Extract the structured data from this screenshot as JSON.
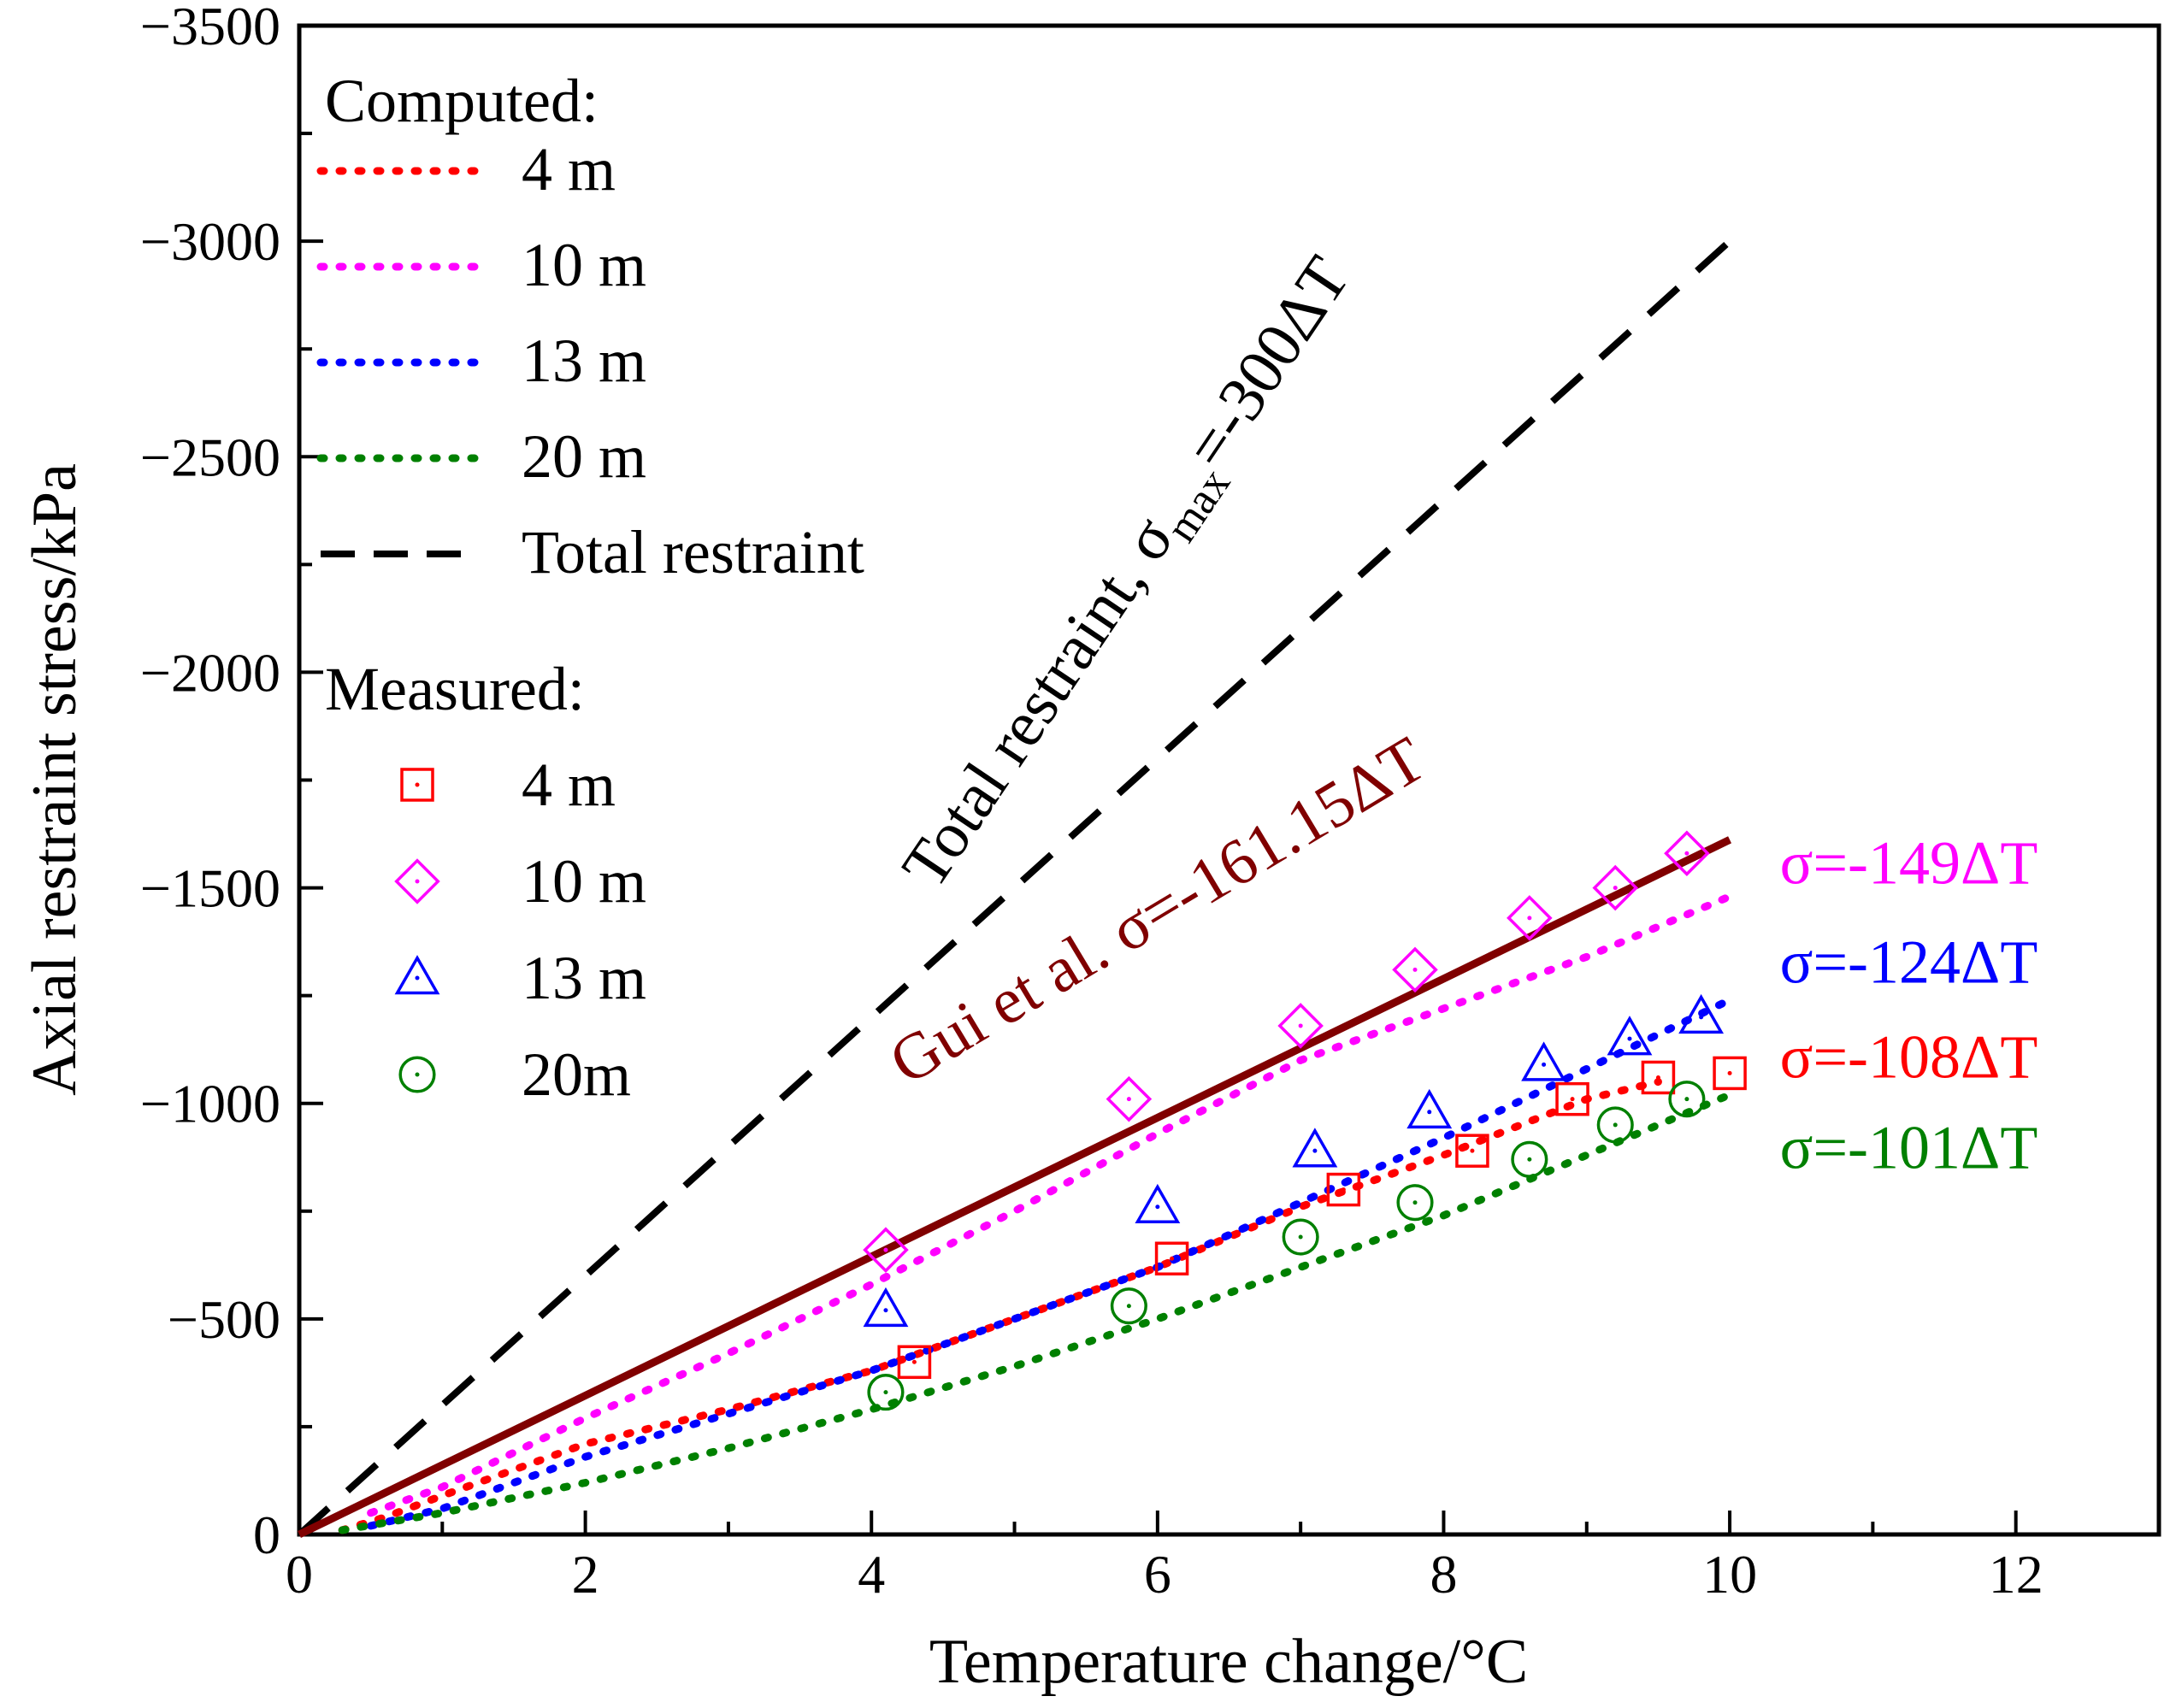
{
  "chart_data": {
    "type": "scatter",
    "xlabel": "Temperature change/°C",
    "ylabel": "Axial restraint stress/kPa",
    "xlim": [
      0,
      13
    ],
    "ylim": [
      0,
      -3500
    ],
    "x_ticks": [
      0,
      2,
      4,
      6,
      8,
      10,
      12
    ],
    "y_ticks": [
      0,
      -500,
      -1000,
      -1500,
      -2000,
      -2500,
      -3000,
      -3500
    ],
    "x_tick_labels": [
      "0",
      "2",
      "4",
      "6",
      "8",
      "10",
      "12"
    ],
    "y_tick_labels": [
      "0",
      "−500",
      "−1000",
      "−1500",
      "−2000",
      "−2500",
      "−3000",
      "−3500"
    ],
    "grid": false,
    "legend_placement": "top-left",
    "legend": {
      "computed_header": "Computed:",
      "measured_header": "Measured:",
      "computed_items": [
        {
          "label": "4 m",
          "color": "#ff0000",
          "style": "dotted"
        },
        {
          "label": "10 m",
          "color": "#ff00ff",
          "style": "dotted"
        },
        {
          "label": "13 m",
          "color": "#0000ff",
          "style": "dotted"
        },
        {
          "label": "20 m",
          "color": "#008000",
          "style": "dotted"
        },
        {
          "label": "Total restraint",
          "color": "#000000",
          "style": "dashed"
        }
      ],
      "measured_items": [
        {
          "label": "4 m",
          "color": "#ff0000",
          "marker": "square"
        },
        {
          "label": "10 m",
          "color": "#ff00ff",
          "marker": "diamond"
        },
        {
          "label": "13 m",
          "color": "#0000ff",
          "marker": "triangle"
        },
        {
          "label": "20m",
          "color": "#008000",
          "marker": "circle"
        }
      ]
    },
    "lines": [
      {
        "name": "Total restraint",
        "color": "#000000",
        "style": "dashed",
        "x": [
          0,
          10
        ],
        "y": [
          0,
          -3000
        ]
      },
      {
        "name": "Gui et al.",
        "color": "#800000",
        "style": "solid",
        "x": [
          0,
          10
        ],
        "y": [
          0,
          -1611.5
        ]
      }
    ],
    "computed_series": [
      {
        "name": "4 m",
        "color": "#ff0000",
        "x": [
          0.3,
          0.6,
          1.0,
          2.0,
          3.0,
          4.0,
          5.0,
          6.0,
          7.0,
          8.0,
          9.0,
          9.5
        ],
        "y": [
          -10,
          -40,
          -90,
          -210,
          -290,
          -380,
          -500,
          -620,
          -760,
          -880,
          -1010,
          -1050
        ]
      },
      {
        "name": "10 m",
        "color": "#ff00ff",
        "x": [
          0.5,
          1.0,
          2.0,
          3.0,
          4.0,
          5.0,
          6.0,
          7.0,
          8.0,
          9.0,
          10.0
        ],
        "y": [
          -50,
          -110,
          -270,
          -420,
          -580,
          -750,
          -930,
          -1100,
          -1220,
          -1340,
          -1480
        ]
      },
      {
        "name": "13 m",
        "color": "#0000ff",
        "x": [
          0.5,
          1.0,
          2.0,
          3.0,
          4.0,
          5.0,
          6.0,
          7.0,
          8.0,
          9.0,
          10.0
        ],
        "y": [
          -20,
          -60,
          -180,
          -280,
          -380,
          -500,
          -620,
          -770,
          -920,
          -1080,
          -1240
        ]
      },
      {
        "name": "20 m",
        "color": "#008000",
        "x": [
          0.3,
          1.0,
          2.0,
          3.0,
          4.0,
          5.0,
          6.0,
          7.0,
          8.0,
          9.0,
          10.0
        ],
        "y": [
          -10,
          -50,
          -120,
          -200,
          -290,
          -390,
          -500,
          -620,
          -740,
          -880,
          -1020
        ]
      }
    ],
    "measured_series": [
      {
        "name": "4 m",
        "color": "#ff0000",
        "marker": "square",
        "x": [
          4.3,
          6.1,
          7.3,
          8.2,
          8.9,
          9.5,
          10.0
        ],
        "y": [
          -400,
          -640,
          -800,
          -890,
          -1010,
          -1060,
          -1070
        ]
      },
      {
        "name": "10 m",
        "color": "#ff00ff",
        "marker": "diamond",
        "x": [
          4.1,
          5.8,
          7.0,
          7.8,
          8.6,
          9.2,
          9.7
        ],
        "y": [
          -660,
          -1010,
          -1180,
          -1310,
          -1430,
          -1500,
          -1580
        ]
      },
      {
        "name": "13 m",
        "color": "#0000ff",
        "marker": "triangle",
        "x": [
          4.1,
          6.0,
          7.1,
          7.9,
          8.7,
          9.3,
          9.8
        ],
        "y": [
          -520,
          -760,
          -890,
          -980,
          -1090,
          -1150,
          -1200
        ]
      },
      {
        "name": "20m",
        "color": "#008000",
        "marker": "circle",
        "x": [
          4.1,
          5.8,
          7.0,
          7.8,
          8.6,
          9.2,
          9.7
        ],
        "y": [
          -330,
          -530,
          -690,
          -770,
          -870,
          -950,
          -1010
        ]
      }
    ],
    "annotations": [
      {
        "text": "Total restraint, σ",
        "subscript": "max",
        "suffix": "=-300ΔT",
        "color": "#000000",
        "anchor_x": 4.45,
        "anchor_y": -1490
      },
      {
        "text": "Gui et al. σ=-161.15ΔT",
        "color": "#800000",
        "anchor_x": 4.25,
        "anchor_y": -1040
      },
      {
        "text": "σ=-149ΔT",
        "color": "#ff00ff",
        "anchor_x": 10.35,
        "anchor_y": -1510
      },
      {
        "text": "σ=-124ΔT",
        "color": "#0000ff",
        "anchor_x": 10.35,
        "anchor_y": -1280
      },
      {
        "text": "σ=-108ΔT",
        "color": "#ff0000",
        "anchor_x": 10.35,
        "anchor_y": -1060
      },
      {
        "text": "σ=-101ΔT",
        "color": "#008000",
        "anchor_x": 10.35,
        "anchor_y": -850
      }
    ]
  }
}
